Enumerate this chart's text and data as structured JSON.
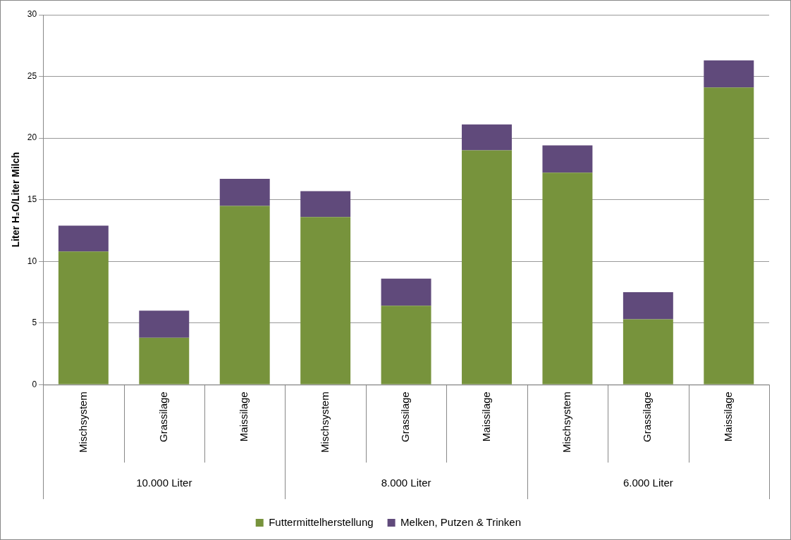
{
  "chart_data": {
    "type": "bar",
    "stacked": true,
    "ylabel": "Liter H₂O/Liter Milch",
    "categories": [
      "Mischsystem",
      "Grassilage",
      "Maissilage",
      "Mischsystem",
      "Grassilage",
      "Maissilage",
      "Mischsystem",
      "Grassilage",
      "Maissilage"
    ],
    "series": [
      {
        "name": "Futtermittelherstellung",
        "color": "#77933c",
        "values": [
          10.8,
          3.8,
          14.5,
          13.6,
          6.4,
          19.0,
          17.2,
          5.3,
          24.1
        ]
      },
      {
        "name": "Melken, Putzen & Trinken",
        "color": "#604a7b",
        "values": [
          2.1,
          2.2,
          2.2,
          2.1,
          2.2,
          2.1,
          2.2,
          2.2,
          2.2
        ]
      }
    ],
    "ylim": [
      0,
      30
    ],
    "yticks": [
      0,
      5,
      10,
      15,
      20,
      25,
      30
    ],
    "grid": "y",
    "legend": "bottom",
    "annotations": [
      "10.000 Liter",
      "8.000 Liter",
      "6.000 Liter"
    ]
  }
}
